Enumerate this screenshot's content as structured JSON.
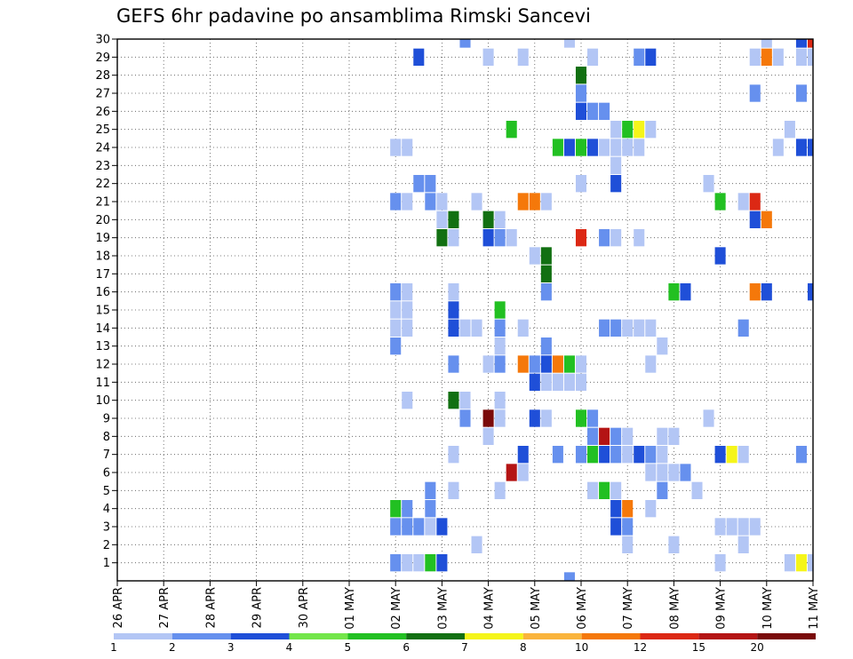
{
  "chart_data": {
    "type": "heatmap",
    "title": "GEFS 6hr padavine po ansamblima Rimski Sancevi",
    "x_ticks": [
      "26 APR",
      "27 APR",
      "28 APR",
      "29 APR",
      "30 APR",
      "01 MAY",
      "02 MAY",
      "03 MAY",
      "04 MAY",
      "05 MAY",
      "06 MAY",
      "07 MAY",
      "08 MAY",
      "09 MAY",
      "10 MAY",
      "11 MAY"
    ],
    "xlim": [
      "26 APR 00",
      "11 MAY 00"
    ],
    "y_ticks": [
      1,
      2,
      3,
      4,
      5,
      6,
      7,
      8,
      9,
      10,
      11,
      12,
      13,
      14,
      15,
      16,
      17,
      18,
      19,
      20,
      21,
      22,
      23,
      24,
      25,
      26,
      27,
      28,
      29,
      30
    ],
    "ylim": [
      0,
      30
    ],
    "xlabel": "",
    "ylabel": "",
    "grid": "dotted",
    "colorbar": {
      "levels": [
        1,
        2,
        3,
        4,
        5,
        6,
        7,
        8,
        10,
        12,
        15,
        20
      ],
      "labels": [
        "1",
        "2",
        "3",
        "4",
        "5",
        "6",
        "7",
        "8",
        "10",
        "12",
        "15",
        "20"
      ],
      "colors": [
        "#b3c6f5",
        "#6690ee",
        "#1f4fd8",
        "#73e64a",
        "#22c022",
        "#127012",
        "#f5f51a",
        "#fab43c",
        "#f5780a",
        "#dc2814",
        "#b41414",
        "#7a0a0a"
      ]
    },
    "cells": [
      [
        "03 MAY 12",
        30,
        2
      ],
      [
        "05 MAY 18",
        30,
        1
      ],
      [
        "10 MAY 00",
        30,
        1
      ],
      [
        "10 MAY 18",
        30,
        3
      ],
      [
        "10 MAY 24",
        30,
        12
      ],
      [
        "02 MAY 12",
        29,
        3
      ],
      [
        "04 MAY 00",
        29,
        1
      ],
      [
        "04 MAY 18",
        29,
        1
      ],
      [
        "06 MAY 06",
        29,
        1
      ],
      [
        "07 MAY 06",
        29,
        2
      ],
      [
        "07 MAY 12",
        29,
        3
      ],
      [
        "09 MAY 18",
        29,
        1
      ],
      [
        "10 MAY 00",
        29,
        10
      ],
      [
        "10 MAY 06",
        29,
        1
      ],
      [
        "10 MAY 18",
        29,
        1
      ],
      [
        "10 MAY 24",
        29,
        1
      ],
      [
        "06 MAY 00",
        28,
        6
      ],
      [
        "10 MAY 18",
        27,
        2
      ],
      [
        "06 MAY 00",
        27,
        2
      ],
      [
        "09 MAY 18",
        27,
        2
      ],
      [
        "06 MAY 00",
        26,
        3
      ],
      [
        "06 MAY 06",
        26,
        2
      ],
      [
        "06 MAY 12",
        26,
        2
      ],
      [
        "04 MAY 12",
        25,
        5
      ],
      [
        "06 MAY 18",
        25,
        1
      ],
      [
        "07 MAY 00",
        25,
        5
      ],
      [
        "07 MAY 06",
        25,
        7
      ],
      [
        "07 MAY 12",
        25,
        1
      ],
      [
        "10 MAY 12",
        25,
        1
      ],
      [
        "02 MAY 00",
        24,
        1
      ],
      [
        "02 MAY 06",
        24,
        1
      ],
      [
        "05 MAY 12",
        24,
        5
      ],
      [
        "05 MAY 18",
        24,
        3
      ],
      [
        "06 MAY 00",
        24,
        5
      ],
      [
        "06 MAY 06",
        24,
        3
      ],
      [
        "06 MAY 12",
        24,
        1
      ],
      [
        "06 MAY 18",
        24,
        1
      ],
      [
        "07 MAY 00",
        24,
        1
      ],
      [
        "07 MAY 06",
        24,
        1
      ],
      [
        "10 MAY 06",
        24,
        1
      ],
      [
        "10 MAY 18",
        24,
        3
      ],
      [
        "10 MAY 24",
        24,
        3
      ],
      [
        "06 MAY 18",
        23,
        1
      ],
      [
        "02 MAY 12",
        22,
        2
      ],
      [
        "02 MAY 18",
        22,
        2
      ],
      [
        "05 MAY 24",
        22,
        1
      ],
      [
        "06 MAY 18",
        22,
        3
      ],
      [
        "08 MAY 18",
        22,
        1
      ],
      [
        "02 MAY 00",
        21,
        2
      ],
      [
        "02 MAY 06",
        21,
        1
      ],
      [
        "02 MAY 18",
        21,
        2
      ],
      [
        "03 MAY 00",
        21,
        1
      ],
      [
        "03 MAY 18",
        21,
        1
      ],
      [
        "04 MAY 18",
        21,
        10
      ],
      [
        "05 MAY 00",
        21,
        10
      ],
      [
        "05 MAY 06",
        21,
        1
      ],
      [
        "09 MAY 00",
        21,
        5
      ],
      [
        "09 MAY 12",
        21,
        1
      ],
      [
        "09 MAY 18",
        21,
        12
      ],
      [
        "03 MAY 00",
        20,
        1
      ],
      [
        "03 MAY 06",
        20,
        6
      ],
      [
        "04 MAY 00",
        20,
        6
      ],
      [
        "04 MAY 06",
        20,
        1
      ],
      [
        "09 MAY 18",
        20,
        3
      ],
      [
        "10 MAY 00",
        20,
        10
      ],
      [
        "03 MAY 00",
        19,
        6
      ],
      [
        "03 MAY 06",
        19,
        1
      ],
      [
        "04 MAY 00",
        19,
        3
      ],
      [
        "04 MAY 06",
        19,
        2
      ],
      [
        "04 MAY 12",
        19,
        1
      ],
      [
        "05 MAY 24",
        19,
        12
      ],
      [
        "06 MAY 12",
        19,
        2
      ],
      [
        "06 MAY 18",
        19,
        1
      ],
      [
        "07 MAY 06",
        19,
        1
      ],
      [
        "05 MAY 00",
        18,
        1
      ],
      [
        "05 MAY 06",
        18,
        6
      ],
      [
        "09 MAY 00",
        18,
        3
      ],
      [
        "05 MAY 06",
        17,
        6
      ],
      [
        "02 MAY 00",
        16,
        2
      ],
      [
        "02 MAY 06",
        16,
        1
      ],
      [
        "03 MAY 06",
        16,
        1
      ],
      [
        "05 MAY 06",
        16,
        2
      ],
      [
        "08 MAY 00",
        16,
        5
      ],
      [
        "08 MAY 06",
        16,
        3
      ],
      [
        "09 MAY 18",
        16,
        10
      ],
      [
        "10 MAY 00",
        16,
        3
      ],
      [
        "10 MAY 24",
        16,
        3
      ],
      [
        "02 MAY 00",
        15,
        1
      ],
      [
        "02 MAY 06",
        15,
        1
      ],
      [
        "03 MAY 06",
        15,
        3
      ],
      [
        "04 MAY 06",
        15,
        5
      ],
      [
        "02 MAY 00",
        14,
        1
      ],
      [
        "02 MAY 06",
        14,
        1
      ],
      [
        "03 MAY 06",
        14,
        3
      ],
      [
        "03 MAY 12",
        14,
        1
      ],
      [
        "03 MAY 18",
        14,
        1
      ],
      [
        "04 MAY 06",
        14,
        2
      ],
      [
        "04 MAY 18",
        14,
        1
      ],
      [
        "06 MAY 12",
        14,
        2
      ],
      [
        "06 MAY 18",
        14,
        2
      ],
      [
        "07 MAY 00",
        14,
        1
      ],
      [
        "07 MAY 06",
        14,
        1
      ],
      [
        "07 MAY 12",
        14,
        1
      ],
      [
        "09 MAY 12",
        14,
        2
      ],
      [
        "01 MAY 24",
        13,
        2
      ],
      [
        "04 MAY 06",
        13,
        1
      ],
      [
        "05 MAY 06",
        13,
        2
      ],
      [
        "07 MAY 18",
        13,
        1
      ],
      [
        "03 MAY 06",
        12,
        2
      ],
      [
        "04 MAY 00",
        12,
        1
      ],
      [
        "04 MAY 06",
        12,
        2
      ],
      [
        "04 MAY 18",
        12,
        10
      ],
      [
        "05 MAY 00",
        12,
        2
      ],
      [
        "05 MAY 06",
        12,
        3
      ],
      [
        "05 MAY 12",
        12,
        10
      ],
      [
        "05 MAY 18",
        12,
        5
      ],
      [
        "05 MAY 24",
        12,
        1
      ],
      [
        "07 MAY 12",
        12,
        1
      ],
      [
        "05 MAY 00",
        11,
        3
      ],
      [
        "05 MAY 06",
        11,
        1
      ],
      [
        "05 MAY 12",
        11,
        1
      ],
      [
        "05 MAY 18",
        11,
        1
      ],
      [
        "05 MAY 24",
        11,
        1
      ],
      [
        "02 MAY 06",
        10,
        1
      ],
      [
        "03 MAY 06",
        10,
        6
      ],
      [
        "03 MAY 12",
        10,
        1
      ],
      [
        "04 MAY 06",
        10,
        1
      ],
      [
        "03 MAY 12",
        9,
        2
      ],
      [
        "04 MAY 00",
        9,
        20
      ],
      [
        "04 MAY 06",
        9,
        1
      ],
      [
        "05 MAY 00",
        9,
        3
      ],
      [
        "05 MAY 06",
        9,
        1
      ],
      [
        "05 MAY 24",
        9,
        5
      ],
      [
        "06 MAY 06",
        9,
        2
      ],
      [
        "08 MAY 18",
        9,
        1
      ],
      [
        "04 MAY 00",
        8,
        1
      ],
      [
        "06 MAY 06",
        8,
        2
      ],
      [
        "06 MAY 12",
        8,
        15
      ],
      [
        "06 MAY 18",
        8,
        2
      ],
      [
        "07 MAY 00",
        8,
        1
      ],
      [
        "07 MAY 18",
        8,
        1
      ],
      [
        "08 MAY 00",
        8,
        1
      ],
      [
        "03 MAY 06",
        7,
        1
      ],
      [
        "04 MAY 18",
        7,
        3
      ],
      [
        "05 MAY 12",
        7,
        2
      ],
      [
        "05 MAY 24",
        7,
        1
      ],
      [
        "06 MAY 00",
        7,
        2
      ],
      [
        "06 MAY 06",
        7,
        5
      ],
      [
        "06 MAY 12",
        7,
        3
      ],
      [
        "06 MAY 18",
        7,
        2
      ],
      [
        "07 MAY 00",
        7,
        1
      ],
      [
        "07 MAY 06",
        7,
        3
      ],
      [
        "07 MAY 12",
        7,
        2
      ],
      [
        "07 MAY 18",
        7,
        1
      ],
      [
        "08 MAY 24",
        7,
        3
      ],
      [
        "09 MAY 06",
        7,
        7
      ],
      [
        "09 MAY 12",
        7,
        1
      ],
      [
        "10 MAY 18",
        7,
        2
      ],
      [
        "04 MAY 12",
        6,
        15
      ],
      [
        "04 MAY 18",
        6,
        1
      ],
      [
        "07 MAY 12",
        6,
        1
      ],
      [
        "07 MAY 18",
        6,
        1
      ],
      [
        "08 MAY 00",
        6,
        1
      ],
      [
        "08 MAY 06",
        6,
        2
      ],
      [
        "02 MAY 18",
        5,
        2
      ],
      [
        "03 MAY 06",
        5,
        1
      ],
      [
        "04 MAY 06",
        5,
        1
      ],
      [
        "06 MAY 06",
        5,
        1
      ],
      [
        "06 MAY 12",
        5,
        5
      ],
      [
        "06 MAY 18",
        5,
        1
      ],
      [
        "07 MAY 18",
        5,
        2
      ],
      [
        "08 MAY 12",
        5,
        1
      ],
      [
        "02 MAY 00",
        4,
        5
      ],
      [
        "02 MAY 06",
        4,
        2
      ],
      [
        "02 MAY 18",
        4,
        2
      ],
      [
        "06 MAY 18",
        4,
        3
      ],
      [
        "07 MAY 00",
        4,
        10
      ],
      [
        "07 MAY 12",
        4,
        1
      ],
      [
        "02 MAY 00",
        3,
        2
      ],
      [
        "02 MAY 06",
        3,
        2
      ],
      [
        "02 MAY 12",
        3,
        2
      ],
      [
        "02 MAY 18",
        3,
        1
      ],
      [
        "03 MAY 00",
        3,
        3
      ],
      [
        "06 MAY 18",
        3,
        3
      ],
      [
        "07 MAY 00",
        3,
        2
      ],
      [
        "08 MAY 24",
        3,
        1
      ],
      [
        "09 MAY 06",
        3,
        1
      ],
      [
        "09 MAY 12",
        3,
        1
      ],
      [
        "09 MAY 18",
        3,
        1
      ],
      [
        "03 MAY 18",
        2,
        1
      ],
      [
        "07 MAY 00",
        2,
        1
      ],
      [
        "08 MAY 00",
        2,
        1
      ],
      [
        "09 MAY 12",
        2,
        1
      ],
      [
        "01 MAY 24",
        1,
        2
      ],
      [
        "02 MAY 06",
        1,
        1
      ],
      [
        "02 MAY 12",
        1,
        1
      ],
      [
        "02 MAY 18",
        1,
        5
      ],
      [
        "03 MAY 00",
        1,
        3
      ],
      [
        "09 MAY 00",
        1,
        1
      ],
      [
        "10 MAY 12",
        1,
        1
      ],
      [
        "10 MAY 18",
        1,
        7
      ],
      [
        "10 MAY 24",
        1,
        1
      ],
      [
        "05 MAY 18",
        0,
        2
      ]
    ]
  }
}
